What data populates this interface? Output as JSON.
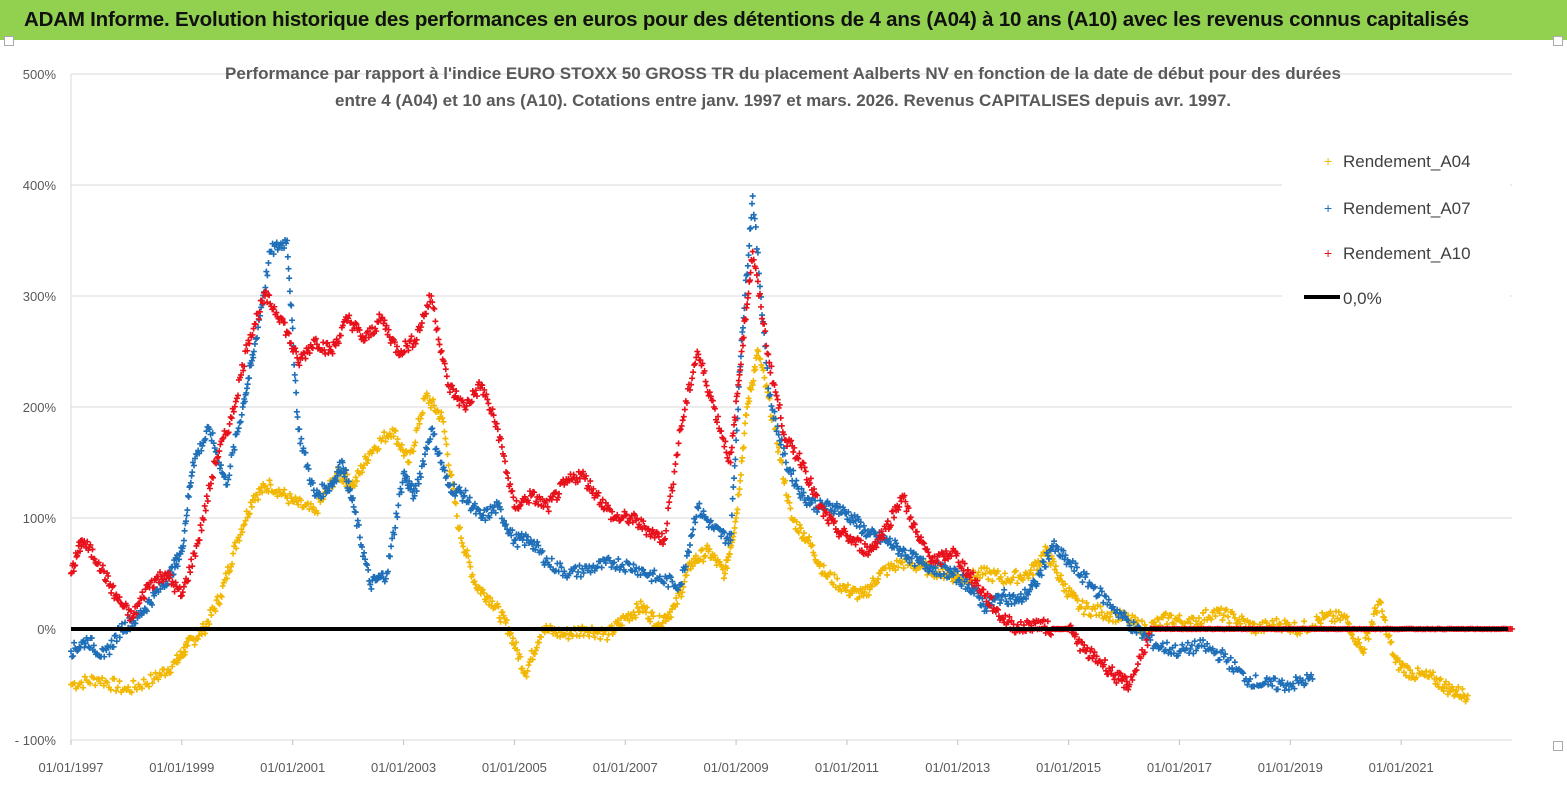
{
  "banner": {
    "title": "ADAM Informe. Evolution historique des performances en euros pour des détentions de 4 ans (A04) à 10 ans (A10) avec les revenus connus capitalisés"
  },
  "colors": {
    "banner_bg": "#92D050",
    "A04": "#F2B700",
    "A07": "#1E6FB8",
    "A10": "#E8101A",
    "zero": "#000000",
    "grid": "#D9D9D9"
  },
  "chart_data": {
    "type": "scatter",
    "title_line1": "Performance par rapport à l'indice EURO STOXX 50 GROSS TR  du placement Aalberts NV en fonction de la date de début pour des durées",
    "title_line2": "entre 4 (A04) et 10 ans (A10). Cotations entre janv. 1997 et mars. 2026. Revenus CAPITALISES depuis avr. 1997.",
    "y_ticks": [
      "500%",
      "400%",
      "300%",
      "200%",
      "100%",
      "0%",
      "- 100%"
    ],
    "ylim": [
      -100,
      500
    ],
    "y_tick_values": [
      500,
      400,
      300,
      200,
      100,
      0,
      -100
    ],
    "x_ticks": [
      "01/01/1997",
      "01/01/1999",
      "01/01/2001",
      "01/01/2003",
      "01/01/2005",
      "01/01/2007",
      "01/01/2009",
      "01/01/2011",
      "01/01/2013",
      "01/01/2015",
      "01/01/2017",
      "01/01/2019",
      "01/01/2021"
    ],
    "xlim": [
      1997.0,
      2023.0
    ],
    "grid": "horizontal",
    "legend_position": "top-right",
    "legend": [
      "Rendement_A04",
      "Rendement_A07",
      "Rendement_A10",
      "0,0%"
    ],
    "series": [
      {
        "name": "Rendement_A04",
        "key": "A04",
        "x": [
          1997.0,
          1997.5,
          1998.0,
          1998.5,
          1998.9,
          1999.1,
          1999.4,
          1999.7,
          2000.0,
          2000.3,
          2000.6,
          2001.0,
          2001.4,
          2001.8,
          2002.1,
          2002.4,
          2002.8,
          2003.1,
          2003.4,
          2003.7,
          2004.0,
          2004.3,
          2004.6,
          2004.9,
          2005.2,
          2005.5,
          2005.9,
          2006.3,
          2006.7,
          2007.0,
          2007.3,
          2007.6,
          2007.9,
          2008.2,
          2008.5,
          2008.8,
          2009.0,
          2009.2,
          2009.4,
          2009.7,
          2010.0,
          2010.3,
          2010.6,
          2011.0,
          2011.3,
          2011.6,
          2012.0,
          2012.4,
          2012.8,
          2013.1,
          2013.5,
          2013.9,
          2014.3,
          2014.6,
          2014.9,
          2015.2,
          2015.6,
          2016.0,
          2016.4,
          2016.8,
          2017.2,
          2017.6,
          2018.0,
          2018.4,
          2018.8,
          2019.2,
          2019.6,
          2020.0,
          2020.3,
          2020.6,
          2020.9,
          2021.2,
          2021.6,
          2021.9,
          2022.2
        ],
        "y": [
          -50,
          -45,
          -55,
          -45,
          -30,
          -15,
          0,
          30,
          80,
          120,
          130,
          115,
          105,
          140,
          130,
          160,
          180,
          150,
          210,
          190,
          90,
          40,
          25,
          0,
          -40,
          0,
          -5,
          0,
          -5,
          10,
          20,
          5,
          20,
          60,
          70,
          50,
          100,
          200,
          250,
          180,
          100,
          80,
          50,
          35,
          30,
          50,
          60,
          55,
          50,
          45,
          50,
          45,
          50,
          70,
          40,
          20,
          15,
          10,
          0,
          10,
          5,
          15,
          10,
          0,
          5,
          0,
          10,
          10,
          -20,
          25,
          -30,
          -40,
          -45,
          -55,
          -60
        ]
      },
      {
        "name": "Rendement_A07",
        "key": "A07",
        "x": [
          1997.0,
          1997.3,
          1997.6,
          1997.9,
          1998.2,
          1998.5,
          1998.8,
          1999.0,
          1999.2,
          1999.5,
          1999.8,
          2000.1,
          2000.3,
          2000.6,
          2000.9,
          2001.1,
          2001.4,
          2001.7,
          2001.9,
          2002.1,
          2002.4,
          2002.7,
          2003.0,
          2003.2,
          2003.5,
          2003.8,
          2004.1,
          2004.4,
          2004.7,
          2005.0,
          2005.3,
          2005.6,
          2006.0,
          2006.4,
          2006.8,
          2007.2,
          2007.6,
          2008.0,
          2008.3,
          2008.6,
          2008.9,
          2009.1,
          2009.3,
          2009.6,
          2009.9,
          2010.2,
          2010.5,
          2010.8,
          2011.1,
          2011.4,
          2011.7,
          2012.0,
          2012.3,
          2012.6,
          2012.9,
          2013.2,
          2013.5,
          2013.8,
          2014.1,
          2014.4,
          2014.7,
          2015.0,
          2015.4,
          2015.8,
          2016.2,
          2016.6,
          2017.0,
          2017.4,
          2017.8,
          2018.2,
          2018.6,
          2019.0,
          2019.4
        ],
        "y": [
          -20,
          -10,
          -25,
          0,
          10,
          30,
          50,
          70,
          150,
          180,
          130,
          200,
          250,
          340,
          350,
          180,
          120,
          130,
          150,
          110,
          40,
          50,
          140,
          120,
          180,
          130,
          120,
          100,
          110,
          80,
          80,
          60,
          50,
          55,
          60,
          55,
          45,
          40,
          110,
          90,
          80,
          260,
          390,
          210,
          150,
          120,
          110,
          110,
          100,
          85,
          80,
          70,
          60,
          55,
          50,
          40,
          20,
          30,
          25,
          40,
          75,
          60,
          40,
          20,
          0,
          -15,
          -20,
          -15,
          -25,
          -45,
          -50,
          -50,
          -45
        ]
      },
      {
        "name": "Rendement_A10",
        "key": "A10",
        "x": [
          1997.0,
          1997.2,
          1997.5,
          1997.8,
          1998.1,
          1998.4,
          1998.7,
          1999.0,
          1999.3,
          1999.6,
          1999.9,
          2000.2,
          2000.5,
          2000.8,
          2001.1,
          2001.4,
          2001.7,
          2002.0,
          2002.3,
          2002.6,
          2002.9,
          2003.2,
          2003.5,
          2003.8,
          2004.1,
          2004.4,
          2004.7,
          2005.0,
          2005.3,
          2005.6,
          2005.9,
          2006.2,
          2006.5,
          2006.8,
          2007.1,
          2007.4,
          2007.7,
          2008.0,
          2008.3,
          2008.6,
          2008.9,
          2009.1,
          2009.3,
          2009.6,
          2009.9,
          2010.2,
          2010.5,
          2010.8,
          2011.1,
          2011.4,
          2011.7,
          2012.0,
          2012.3,
          2012.6,
          2012.9,
          2013.2,
          2013.5,
          2013.8,
          2014.1,
          2014.4,
          2014.7,
          2015.0,
          2015.3,
          2015.6,
          2015.9,
          2016.1,
          2016.5,
          2017.0,
          2017.5,
          2018.0,
          2018.5,
          2019.0,
          2019.5,
          2020.0,
          2020.5,
          2021.0,
          2021.5,
          2022.0,
          2022.5,
          2023.0
        ],
        "y": [
          50,
          80,
          60,
          30,
          10,
          40,
          50,
          30,
          80,
          150,
          190,
          260,
          300,
          280,
          240,
          260,
          250,
          280,
          260,
          280,
          250,
          260,
          300,
          220,
          200,
          220,
          180,
          110,
          120,
          110,
          130,
          140,
          120,
          100,
          100,
          90,
          80,
          180,
          250,
          200,
          150,
          250,
          340,
          240,
          170,
          150,
          110,
          90,
          80,
          70,
          90,
          120,
          80,
          60,
          70,
          50,
          30,
          10,
          0,
          5,
          0,
          0,
          -20,
          -30,
          -45,
          -50,
          0,
          0,
          0,
          0,
          0,
          0,
          0,
          0,
          0,
          0,
          0,
          0,
          0,
          0
        ]
      }
    ],
    "zero_line": {
      "name": "0,0%",
      "y": 0,
      "x_start": 1997.0,
      "x_end": 2023.0
    }
  }
}
